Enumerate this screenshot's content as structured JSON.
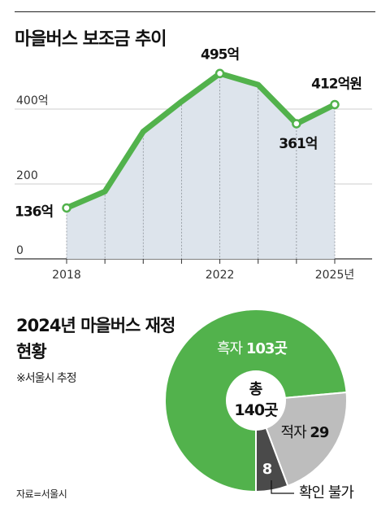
{
  "chart_data": [
    {
      "type": "line",
      "title": "마을버스 보조금 추이",
      "x": [
        2018,
        2019,
        2020,
        2021,
        2022,
        2023,
        2024,
        2025
      ],
      "series": [
        {
          "values": [
            136,
            180,
            340,
            420,
            495,
            465,
            361,
            412
          ]
        }
      ],
      "xticks": [
        "2018",
        "2022",
        "2025년"
      ],
      "yticks": [
        "0",
        "200",
        "400억"
      ],
      "ylim": [
        0,
        500
      ],
      "data_labels": [
        {
          "index": 0,
          "text": "136억"
        },
        {
          "index": 4,
          "text": "495억"
        },
        {
          "index": 6,
          "text": "361억"
        },
        {
          "index": 7,
          "text": "412억원"
        }
      ],
      "grid": true,
      "colors": {
        "line": "#52b24c",
        "area": "#dde4ec",
        "marker_fill": "#ffffff"
      }
    },
    {
      "type": "pie",
      "title": "2024년 마을버스 재정 현황",
      "subtitle": "※서울시 추정",
      "center_label": [
        "총",
        "140곳"
      ],
      "slices": [
        {
          "label": "흑자",
          "value": 103,
          "text": "103곳",
          "color": "#52b24c"
        },
        {
          "label": "적자",
          "value": 29,
          "text": "29",
          "color": "#bdbdbd"
        },
        {
          "label": "확인 불가",
          "value": 8,
          "text": "8",
          "color": "#4a4a4a"
        }
      ]
    }
  ],
  "source": "자료=서울시"
}
